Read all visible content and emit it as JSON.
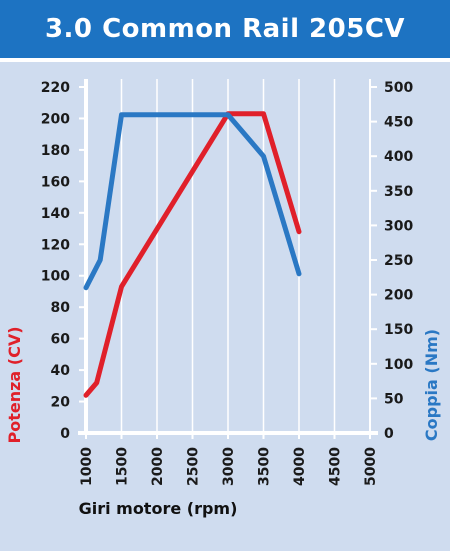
{
  "header": {
    "title": "3.0 Common Rail 205CV"
  },
  "colors": {
    "header_bg": "#1d73c2",
    "plot_bg": "#cfdcef",
    "power": "#e0202a",
    "torque": "#2a78c4",
    "grid": "#ffffff"
  },
  "chart_data": {
    "type": "line",
    "title": "3.0 Common Rail 205CV",
    "xlabel": "Giri motore (rpm)",
    "ylabel_left": "Potenza (CV)",
    "ylabel_right": "Coppia (Nm)",
    "xlim": [
      1000,
      5000
    ],
    "ylim_left": [
      0,
      220
    ],
    "ylim_right": [
      0,
      500
    ],
    "x_ticks": [
      1000,
      1500,
      2000,
      2500,
      3000,
      3500,
      4000,
      4500,
      5000
    ],
    "y_ticks_left": [
      0,
      20,
      40,
      60,
      80,
      100,
      120,
      140,
      160,
      180,
      200,
      220
    ],
    "y_ticks_right": [
      0,
      50,
      100,
      150,
      200,
      250,
      300,
      350,
      400,
      450,
      500
    ],
    "grid": true,
    "series": [
      {
        "name": "Potenza (CV)",
        "axis": "left",
        "color": "#e0202a",
        "x": [
          1000,
          1150,
          1500,
          3000,
          3500,
          4000
        ],
        "y": [
          24,
          32,
          93,
          203,
          203,
          128
        ]
      },
      {
        "name": "Coppia (Nm)",
        "axis": "right",
        "color": "#2a78c4",
        "x": [
          1000,
          1200,
          1500,
          3000,
          3500,
          4000
        ],
        "y": [
          210,
          250,
          460,
          460,
          400,
          230
        ]
      }
    ]
  }
}
